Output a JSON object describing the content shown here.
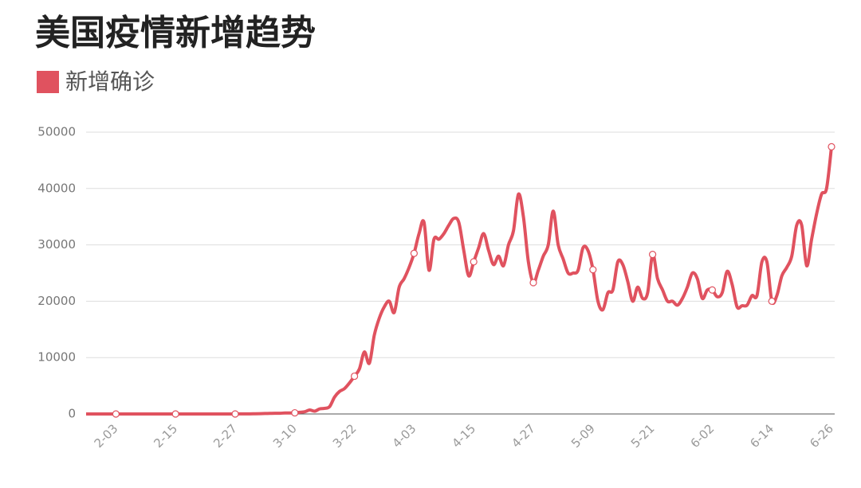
{
  "chart_data": {
    "type": "line",
    "title": "美国疫情新增趋势",
    "categories": [
      null,
      null,
      null,
      null,
      null,
      null,
      "2-03",
      null,
      null,
      null,
      null,
      null,
      null,
      null,
      null,
      null,
      null,
      null,
      "2-15",
      null,
      null,
      null,
      null,
      null,
      null,
      null,
      null,
      null,
      null,
      null,
      "2-27",
      null,
      null,
      null,
      null,
      null,
      null,
      null,
      null,
      null,
      null,
      null,
      "3-10",
      null,
      null,
      null,
      null,
      null,
      null,
      null,
      null,
      null,
      null,
      null,
      "3-22",
      null,
      null,
      null,
      null,
      null,
      null,
      null,
      null,
      null,
      null,
      null,
      "4-03",
      null,
      null,
      null,
      null,
      null,
      null,
      null,
      null,
      null,
      null,
      null,
      "4-15",
      null,
      null,
      null,
      null,
      null,
      null,
      null,
      null,
      null,
      null,
      null,
      "4-27",
      null,
      null,
      null,
      null,
      null,
      null,
      null,
      null,
      null,
      null,
      null,
      "5-09",
      null,
      null,
      null,
      null,
      null,
      null,
      null,
      null,
      null,
      null,
      null,
      "5-21",
      null,
      null,
      null,
      null,
      null,
      null,
      null,
      null,
      null,
      null,
      null,
      "6-02",
      null,
      null,
      null,
      null,
      null,
      null,
      null,
      null,
      null,
      null,
      null,
      "6-14",
      null,
      null,
      null,
      null,
      null,
      null,
      null,
      null,
      null,
      null,
      null,
      "6-26"
    ],
    "series": [
      {
        "name": "新增确诊",
        "color": "#e0525f",
        "values": [
          0,
          0,
          0,
          1,
          0,
          0,
          1,
          0,
          0,
          0,
          0,
          0,
          1,
          0,
          0,
          0,
          0,
          0,
          1,
          0,
          0,
          0,
          1,
          0,
          0,
          1,
          3,
          0,
          5,
          2,
          5,
          10,
          15,
          20,
          40,
          60,
          80,
          100,
          120,
          130,
          170,
          180,
          200,
          300,
          400,
          700,
          500,
          900,
          1000,
          1300,
          3000,
          4000,
          4500,
          5500,
          6700,
          8000,
          11000,
          9000,
          14000,
          17000,
          19000,
          20000,
          18000,
          22500,
          24000,
          26000,
          28500,
          32000,
          34000,
          25500,
          31000,
          31000,
          32000,
          33500,
          34700,
          34000,
          29000,
          24500,
          27000,
          29500,
          32000,
          29000,
          26500,
          28000,
          26300,
          30000,
          32500,
          39000,
          35000,
          27000,
          23300,
          25500,
          28000,
          30000,
          36000,
          30000,
          27500,
          25000,
          25000,
          25500,
          29500,
          29000,
          25600,
          20000,
          18500,
          21500,
          22000,
          27000,
          26500,
          23500,
          20000,
          22500,
          20500,
          21500,
          28300,
          24000,
          22000,
          20000,
          20000,
          19300,
          20500,
          22500,
          25000,
          24000,
          20500,
          22000,
          22000,
          20800,
          21500,
          25300,
          23000,
          19000,
          19200,
          19300,
          21000,
          21000,
          27000,
          27000,
          20000,
          21000,
          24500,
          26000,
          28000,
          33500,
          33500,
          26300,
          31000,
          35500,
          39000,
          40000,
          47400
        ]
      }
    ],
    "ylim": [
      0,
      50000
    ],
    "yticks": [
      0,
      10000,
      20000,
      30000,
      40000,
      50000
    ],
    "grid": true
  }
}
